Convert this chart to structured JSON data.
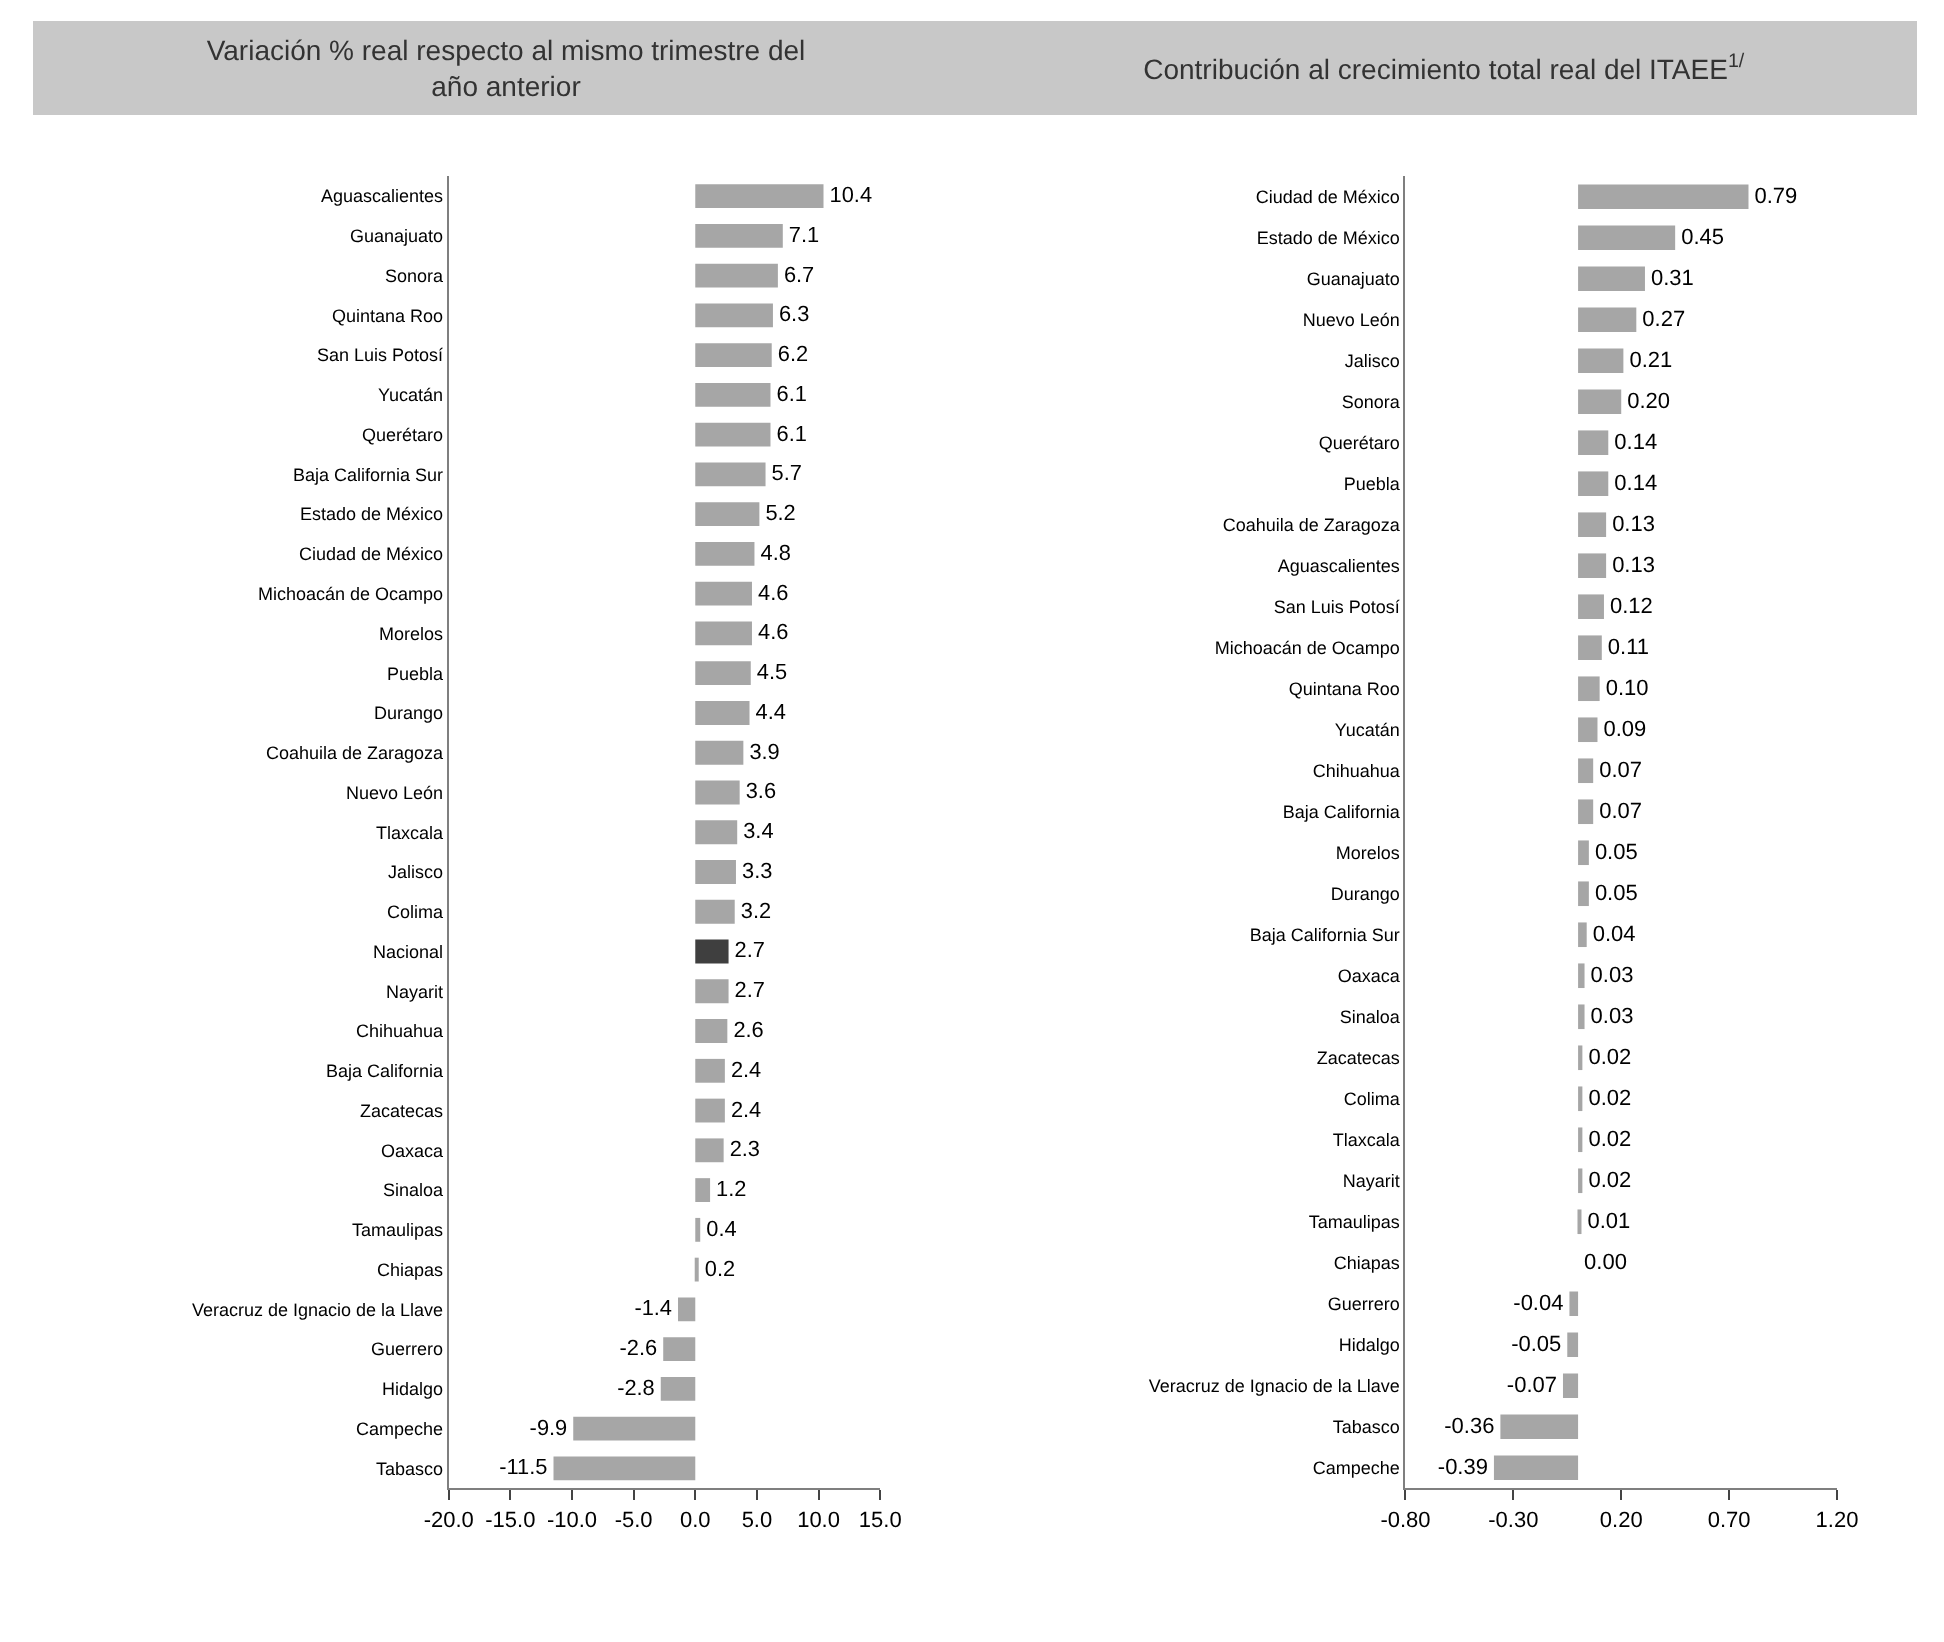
{
  "chart_data": [
    {
      "type": "bar",
      "orientation": "horizontal",
      "title": "Variación % real respecto al mismo trimestre del\naño anterior",
      "categories": [
        "Aguascalientes",
        "Guanajuato",
        "Sonora",
        "Quintana Roo",
        "San Luis Potosí",
        "Yucatán",
        "Querétaro",
        "Baja California Sur",
        "Estado de México",
        "Ciudad de México",
        "Michoacán de Ocampo",
        "Morelos",
        "Puebla",
        "Durango",
        "Coahuila de Zaragoza",
        "Nuevo León",
        "Tlaxcala",
        "Jalisco",
        "Colima",
        "Nacional",
        "Nayarit",
        "Chihuahua",
        "Baja California",
        "Zacatecas",
        "Oaxaca",
        "Sinaloa",
        "Tamaulipas",
        "Chiapas",
        "Veracruz de Ignacio de la Llave",
        "Guerrero",
        "Hidalgo",
        "Campeche",
        "Tabasco"
      ],
      "values": [
        10.4,
        7.1,
        6.7,
        6.3,
        6.2,
        6.1,
        6.1,
        5.7,
        5.2,
        4.8,
        4.6,
        4.6,
        4.5,
        4.4,
        3.9,
        3.6,
        3.4,
        3.3,
        3.2,
        2.7,
        2.7,
        2.6,
        2.4,
        2.4,
        2.3,
        1.2,
        0.4,
        0.2,
        -1.4,
        -2.6,
        -2.8,
        -9.9,
        -11.5
      ],
      "colors": [
        "#a6a6a6",
        "#a6a6a6",
        "#a6a6a6",
        "#a6a6a6",
        "#a6a6a6",
        "#a6a6a6",
        "#a6a6a6",
        "#a6a6a6",
        "#a6a6a6",
        "#a6a6a6",
        "#a6a6a6",
        "#a6a6a6",
        "#a6a6a6",
        "#a6a6a6",
        "#a6a6a6",
        "#a6a6a6",
        "#a6a6a6",
        "#a6a6a6",
        "#a6a6a6",
        "#3f3f3f",
        "#a6a6a6",
        "#a6a6a6",
        "#a6a6a6",
        "#a6a6a6",
        "#a6a6a6",
        "#a6a6a6",
        "#a6a6a6",
        "#a6a6a6",
        "#a6a6a6",
        "#a6a6a6",
        "#a6a6a6",
        "#a6a6a6",
        "#a6a6a6"
      ],
      "xlim": [
        -20,
        15
      ],
      "xticks": [
        {
          "value": -20,
          "label": "-20.0"
        },
        {
          "value": -15,
          "label": "-15.0"
        },
        {
          "value": -10,
          "label": "-10.0"
        },
        {
          "value": -5,
          "label": "-5.0"
        },
        {
          "value": 0,
          "label": "0.0"
        },
        {
          "value": 5,
          "label": "5.0"
        },
        {
          "value": 10,
          "label": "10.0"
        },
        {
          "value": 15,
          "label": "15.0"
        }
      ],
      "data_labels": true
    },
    {
      "type": "bar",
      "orientation": "horizontal",
      "title": "Contribución al crecimiento total real del ITAEE$^{1/}$",
      "categories": [
        "Ciudad de México",
        "Estado de México",
        "Guanajuato",
        "Nuevo León",
        "Jalisco",
        "Sonora",
        "Querétaro",
        "Puebla",
        "Coahuila de Zaragoza",
        "Aguascalientes",
        "San Luis Potosí",
        "Michoacán de Ocampo",
        "Quintana Roo",
        "Yucatán",
        "Chihuahua",
        "Baja California",
        "Morelos",
        "Durango",
        "Baja California Sur",
        "Oaxaca",
        "Sinaloa",
        "Zacatecas",
        "Colima",
        "Tlaxcala",
        "Nayarit",
        "Tamaulipas",
        "Chiapas",
        "Guerrero",
        "Hidalgo",
        "Veracruz de Ignacio de la Llave",
        "Tabasco",
        "Campeche"
      ],
      "values": [
        0.79,
        0.45,
        0.31,
        0.27,
        0.21,
        0.2,
        0.14,
        0.14,
        0.13,
        0.13,
        0.12,
        0.11,
        0.1,
        0.09,
        0.07,
        0.07,
        0.05,
        0.05,
        0.04,
        0.03,
        0.03,
        0.02,
        0.02,
        0.02,
        0.02,
        0.01,
        0.0,
        -0.04,
        -0.05,
        -0.07,
        -0.36,
        -0.39
      ],
      "value_labels": [
        "0.79",
        "0.45",
        "0.31",
        "0.27",
        "0.21",
        "0.20",
        "0.14",
        "0.14",
        "0.13",
        "0.13",
        "0.12",
        "0.11",
        "0.10",
        "0.09",
        "0.07",
        "0.07",
        "0.05",
        "0.05",
        "0.04",
        "0.03",
        "0.03",
        "0.02",
        "0.02",
        "0.02",
        "0.02",
        "0.01",
        "0.00",
        "-0.04",
        "-0.05",
        "-0.07",
        "-0.36",
        "-0.39"
      ],
      "color": "#a6a6a6",
      "xlim": [
        -0.8,
        1.2
      ],
      "xticks": [
        {
          "value": -0.8,
          "label": "-0.80"
        },
        {
          "value": -0.3,
          "label": "-0.30"
        },
        {
          "value": 0.2,
          "label": "0.20"
        },
        {
          "value": 0.7,
          "label": "0.70"
        },
        {
          "value": 1.2,
          "label": "1.20"
        }
      ]
    }
  ]
}
